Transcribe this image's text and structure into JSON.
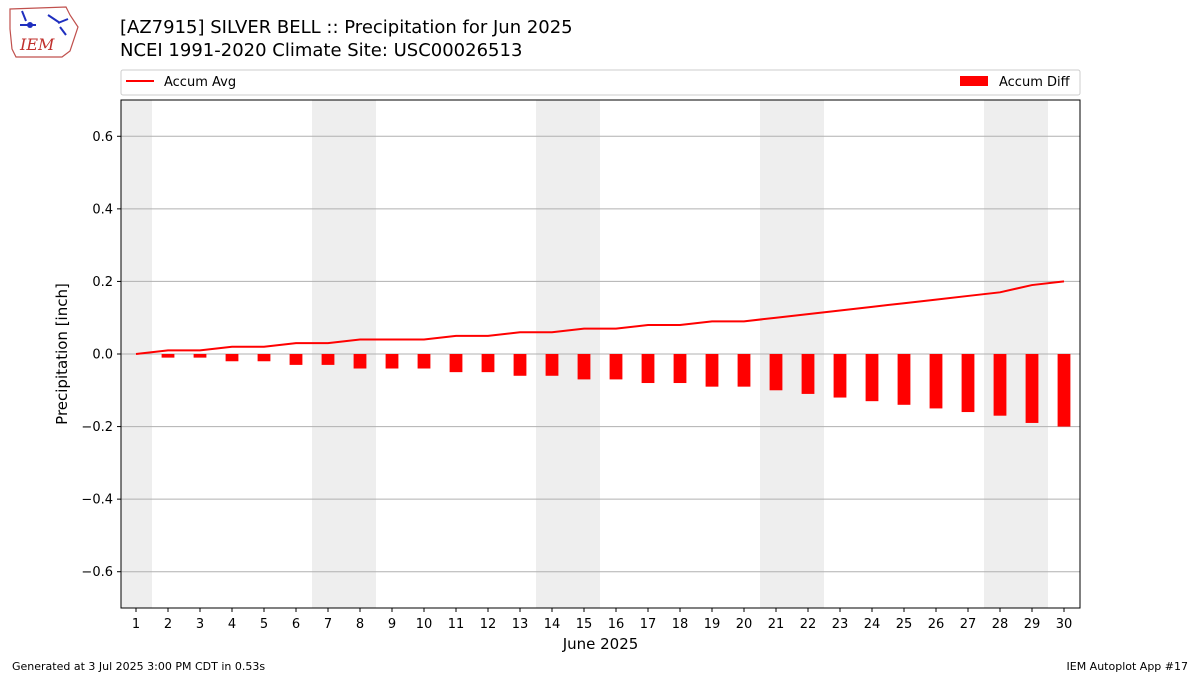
{
  "logo": {
    "text": "IEM",
    "icon": "iem-iowa-logo"
  },
  "footer": {
    "generated": "Generated at 3 Jul 2025 3:00 PM CDT in 0.53s",
    "app": "IEM Autoplot App #17"
  },
  "chart_data": {
    "type": "bar",
    "title": "[AZ7915] SILVER BELL :: Precipitation for Jun 2025",
    "subtitle": "NCEI 1991-2020 Climate Site: USC00026513",
    "xlabel": "June 2025",
    "ylabel": "Precipitation [inch]",
    "ylim": [
      -0.7,
      0.7
    ],
    "yticks": [
      "0.6",
      "0.4",
      "0.2",
      "0.0",
      "−0.2",
      "−0.4",
      "−0.6"
    ],
    "ytick_values": [
      0.6,
      0.4,
      0.2,
      0.0,
      -0.2,
      -0.4,
      -0.6
    ],
    "grid": true,
    "x": [
      1,
      2,
      3,
      4,
      5,
      6,
      7,
      8,
      9,
      10,
      11,
      12,
      13,
      14,
      15,
      16,
      17,
      18,
      19,
      20,
      21,
      22,
      23,
      24,
      25,
      26,
      27,
      28,
      29,
      30
    ],
    "weekend_days": [
      1,
      7,
      8,
      14,
      15,
      21,
      22,
      28,
      29
    ],
    "legend": {
      "placement": "top",
      "line_label": "Accum Avg",
      "bar_label": "Accum Diff"
    },
    "series": [
      {
        "name": "Accum Avg",
        "type": "line",
        "color": "#ff0000",
        "values": [
          0.0,
          0.01,
          0.01,
          0.02,
          0.02,
          0.03,
          0.03,
          0.04,
          0.04,
          0.04,
          0.05,
          0.05,
          0.06,
          0.06,
          0.07,
          0.07,
          0.08,
          0.08,
          0.09,
          0.09,
          0.1,
          0.11,
          0.12,
          0.13,
          0.14,
          0.15,
          0.16,
          0.17,
          0.19,
          0.2
        ]
      },
      {
        "name": "Accum Diff",
        "type": "bar",
        "color": "#ff0000",
        "values": [
          0.0,
          -0.01,
          -0.01,
          -0.02,
          -0.02,
          -0.03,
          -0.03,
          -0.04,
          -0.04,
          -0.04,
          -0.05,
          -0.05,
          -0.06,
          -0.06,
          -0.07,
          -0.07,
          -0.08,
          -0.08,
          -0.09,
          -0.09,
          -0.1,
          -0.11,
          -0.12,
          -0.13,
          -0.14,
          -0.15,
          -0.16,
          -0.17,
          -0.19,
          -0.2
        ]
      }
    ]
  }
}
